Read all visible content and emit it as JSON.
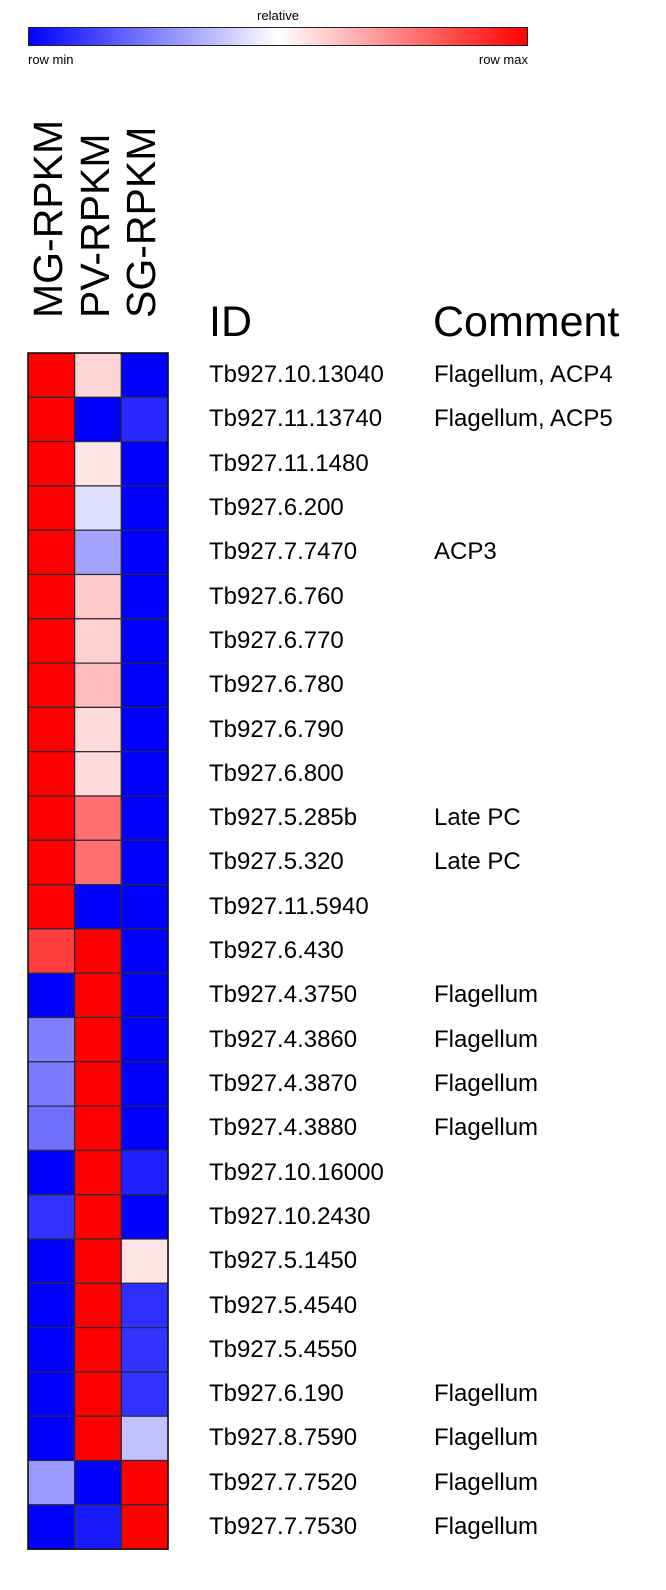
{
  "chart_data": {
    "type": "heatmap",
    "scale": {
      "title": "relative",
      "min_label": "row min",
      "max_label": "row max",
      "low_color": "#0000ff",
      "mid_color": "#ffffff",
      "high_color": "#ff0000"
    },
    "columns": [
      "MG-RPKM",
      "PV-RPKM",
      "SG-RPKM"
    ],
    "id_header": "ID",
    "comment_header": "Comment",
    "rows": [
      {
        "id": "Tb927.10.13040",
        "comment": "Flagellum, ACP4",
        "values": [
          1.0,
          0.58,
          0.0
        ]
      },
      {
        "id": "Tb927.11.13740",
        "comment": "Flagellum, ACP5",
        "values": [
          1.0,
          0.0,
          0.08
        ]
      },
      {
        "id": "Tb927.11.1480",
        "comment": "",
        "values": [
          1.0,
          0.55,
          0.0
        ]
      },
      {
        "id": "Tb927.6.200",
        "comment": "",
        "values": [
          1.0,
          0.44,
          0.0
        ]
      },
      {
        "id": "Tb927.7.7470",
        "comment": "ACP3",
        "values": [
          1.0,
          0.32,
          0.0
        ]
      },
      {
        "id": "Tb927.6.760",
        "comment": "",
        "values": [
          1.0,
          0.6,
          0.0
        ]
      },
      {
        "id": "Tb927.6.770",
        "comment": "",
        "values": [
          1.0,
          0.59,
          0.0
        ]
      },
      {
        "id": "Tb927.6.780",
        "comment": "",
        "values": [
          1.0,
          0.63,
          0.0
        ]
      },
      {
        "id": "Tb927.6.790",
        "comment": "",
        "values": [
          1.0,
          0.57,
          0.0
        ]
      },
      {
        "id": "Tb927.6.800",
        "comment": "",
        "values": [
          1.0,
          0.57,
          0.0
        ]
      },
      {
        "id": "Tb927.5.285b",
        "comment": "Late PC",
        "values": [
          1.0,
          0.78,
          0.0
        ]
      },
      {
        "id": "Tb927.5.320",
        "comment": "Late PC",
        "values": [
          1.0,
          0.78,
          0.0
        ]
      },
      {
        "id": "Tb927.11.5940",
        "comment": "",
        "values": [
          1.0,
          0.0,
          0.0
        ]
      },
      {
        "id": "Tb927.6.430",
        "comment": "",
        "values": [
          0.88,
          1.0,
          0.0
        ]
      },
      {
        "id": "Tb927.4.3750",
        "comment": "Flagellum",
        "values": [
          0.0,
          1.0,
          0.0
        ]
      },
      {
        "id": "Tb927.4.3860",
        "comment": "Flagellum",
        "values": [
          0.25,
          1.0,
          0.0
        ]
      },
      {
        "id": "Tb927.4.3870",
        "comment": "Flagellum",
        "values": [
          0.24,
          1.0,
          0.0
        ]
      },
      {
        "id": "Tb927.4.3880",
        "comment": "Flagellum",
        "values": [
          0.22,
          1.0,
          0.0
        ]
      },
      {
        "id": "Tb927.10.16000",
        "comment": "",
        "values": [
          0.0,
          1.0,
          0.06
        ]
      },
      {
        "id": "Tb927.10.2430",
        "comment": "",
        "values": [
          0.1,
          1.0,
          0.0
        ]
      },
      {
        "id": "Tb927.5.1450",
        "comment": "",
        "values": [
          0.0,
          1.0,
          0.55
        ]
      },
      {
        "id": "Tb927.5.4540",
        "comment": "",
        "values": [
          0.0,
          1.0,
          0.09
        ]
      },
      {
        "id": "Tb927.5.4550",
        "comment": "",
        "values": [
          0.0,
          1.0,
          0.1
        ]
      },
      {
        "id": "Tb927.6.190",
        "comment": "Flagellum",
        "values": [
          0.0,
          1.0,
          0.1
        ]
      },
      {
        "id": "Tb927.8.7590",
        "comment": "Flagellum",
        "values": [
          0.0,
          1.0,
          0.38
        ]
      },
      {
        "id": "Tb927.7.7520",
        "comment": "Flagellum",
        "values": [
          0.3,
          0.0,
          1.0
        ]
      },
      {
        "id": "Tb927.7.7530",
        "comment": "Flagellum",
        "values": [
          0.0,
          0.05,
          1.0
        ]
      }
    ]
  }
}
